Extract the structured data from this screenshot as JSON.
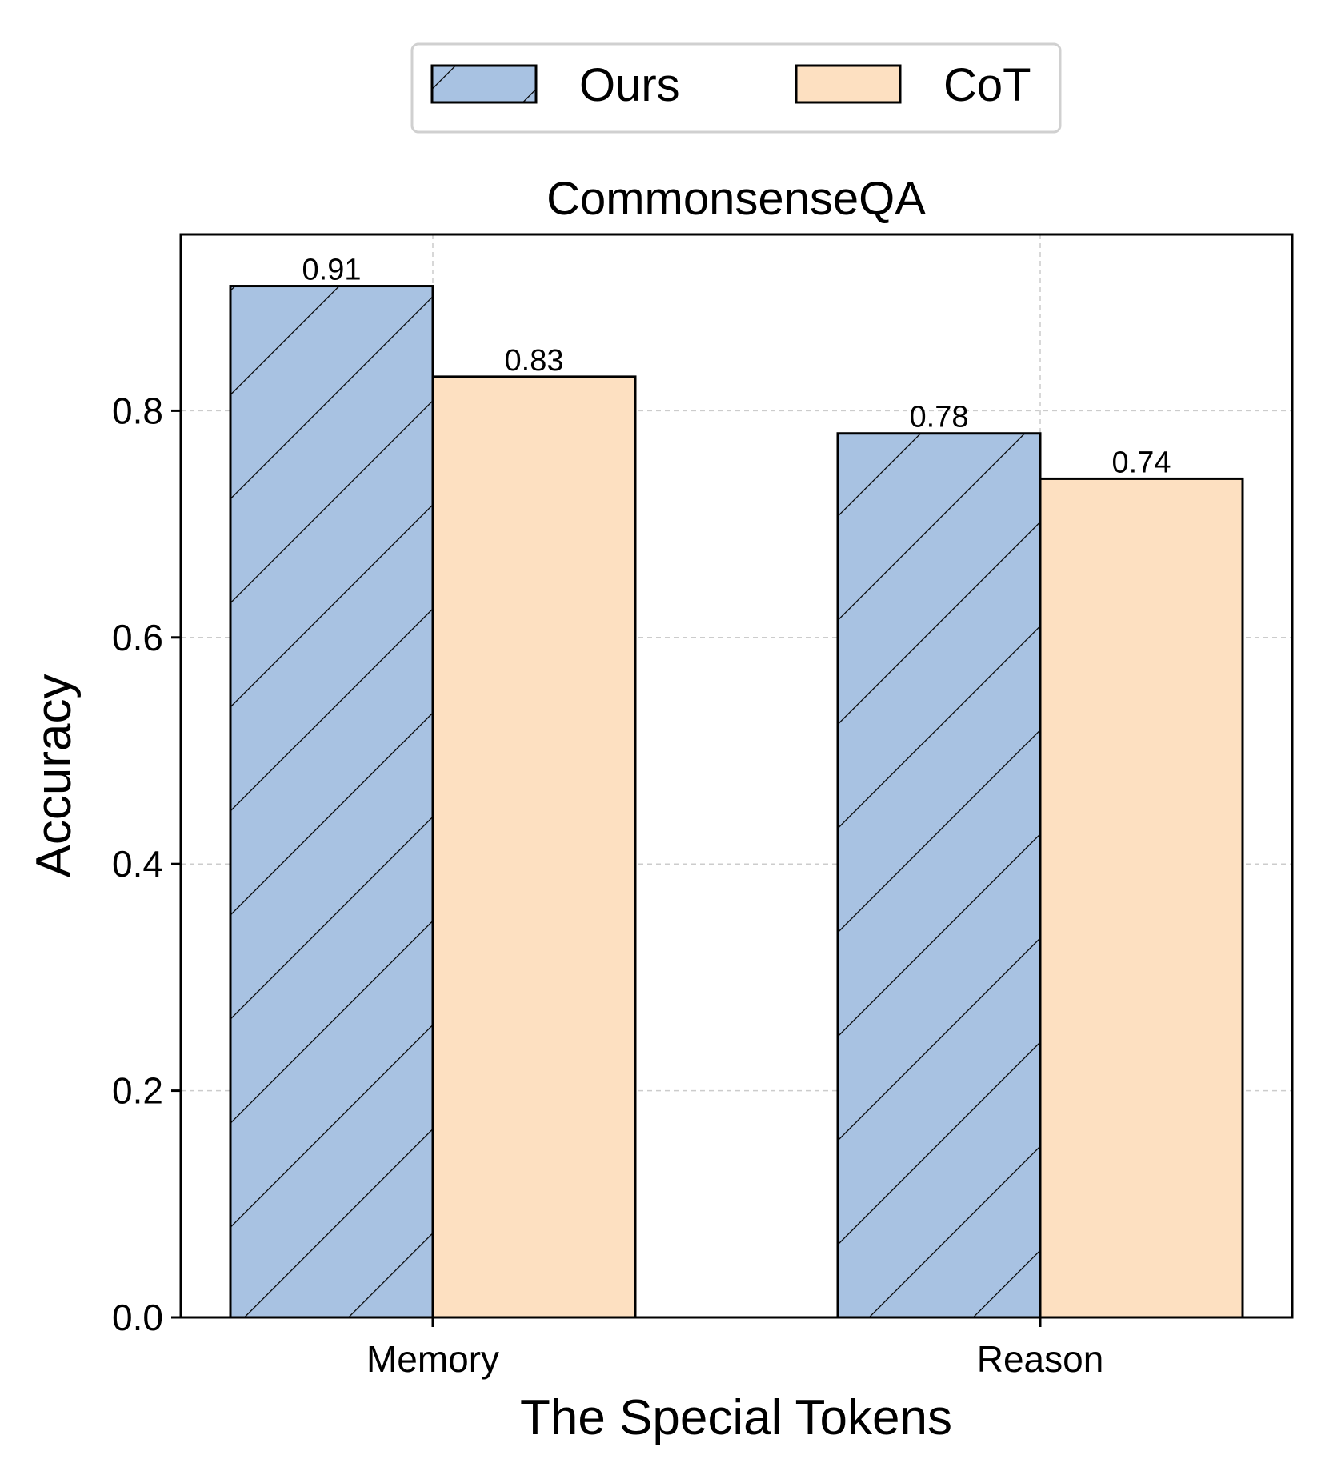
{
  "chart_data": {
    "type": "bar",
    "title": "CommonsenseQA",
    "xlabel": "The Special Tokens",
    "ylabel": "Accuracy",
    "categories": [
      "Memory",
      "Reason"
    ],
    "series": [
      {
        "name": "Ours",
        "values": [
          0.91,
          0.78
        ],
        "color": "#a8c2e2",
        "hatch": "diagonal"
      },
      {
        "name": "CoT",
        "values": [
          0.83,
          0.74
        ],
        "color": "#fde0c1",
        "hatch": "none"
      }
    ],
    "data_labels": [
      [
        "0.91",
        "0.78"
      ],
      [
        "0.83",
        "0.74"
      ]
    ],
    "ylim": [
      0,
      0.95
    ],
    "yticks": [
      0.0,
      0.2,
      0.4,
      0.6,
      0.8
    ],
    "ytick_labels": [
      "0.0",
      "0.2",
      "0.4",
      "0.6",
      "0.8"
    ],
    "grid": true,
    "legend_position": "top-center"
  }
}
